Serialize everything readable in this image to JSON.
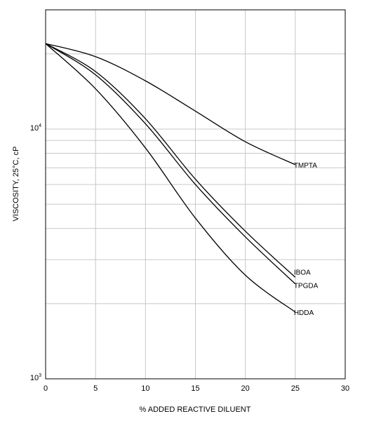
{
  "chart_data": {
    "type": "line",
    "title": "",
    "xlabel": "% ADDED REACTIVE DILUENT",
    "ylabel": "VISCOSITY, 25°C, cP",
    "xlim": [
      0,
      30
    ],
    "ylim": [
      1000,
      23000
    ],
    "yscale": "log",
    "grid": true,
    "x_ticks": [
      "0",
      "5",
      "10",
      "15",
      "20",
      "25",
      "30"
    ],
    "y_ticks": [
      {
        "value": 10000,
        "base": "10",
        "exp": "4"
      },
      {
        "value": 1000,
        "base": "10",
        "exp": "3"
      }
    ],
    "series": [
      {
        "name": "TMPTA",
        "x": [
          0,
          5,
          10,
          15,
          20,
          25
        ],
        "values": [
          22000,
          19500,
          15600,
          11800,
          8900,
          7200
        ]
      },
      {
        "name": "IBOA",
        "x": [
          0,
          5,
          10,
          15,
          20,
          25
        ],
        "values": [
          22000,
          17000,
          11000,
          6300,
          3900,
          2550
        ]
      },
      {
        "name": "TPGDA",
        "x": [
          0,
          5,
          10,
          15,
          20,
          25
        ],
        "values": [
          22000,
          16500,
          10500,
          6000,
          3700,
          2400
        ]
      },
      {
        "name": "HDDA",
        "x": [
          0,
          5,
          10,
          15,
          20,
          25
        ],
        "values": [
          22000,
          14500,
          8400,
          4400,
          2600,
          1850
        ]
      }
    ]
  }
}
